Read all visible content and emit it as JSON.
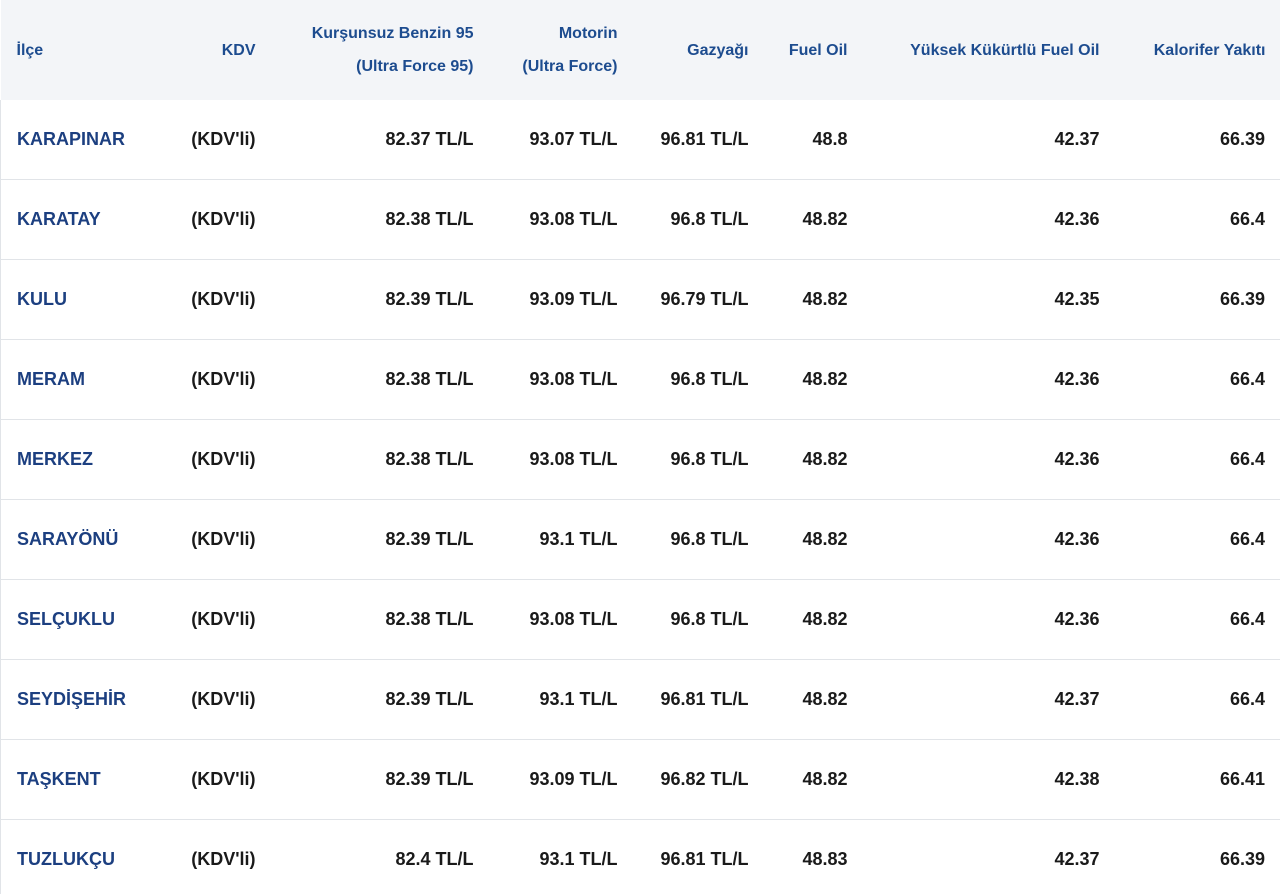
{
  "table": {
    "headers": [
      [
        "İlçe"
      ],
      [
        "KDV"
      ],
      [
        "Kurşunsuz Benzin 95",
        "(Ultra Force 95)"
      ],
      [
        "Motorin",
        "(Ultra Force)"
      ],
      [
        "Gazyağı"
      ],
      [
        "Fuel Oil"
      ],
      [
        "Yüksek Kükürtlü Fuel Oil"
      ],
      [
        "Kalorifer Yakıtı"
      ]
    ],
    "rows": [
      [
        "KARAPINAR",
        "(KDV'li)",
        "82.37 TL/L",
        "93.07 TL/L",
        "96.81 TL/L",
        "48.8",
        "42.37",
        "66.39"
      ],
      [
        "KARATAY",
        "(KDV'li)",
        "82.38 TL/L",
        "93.08 TL/L",
        "96.8 TL/L",
        "48.82",
        "42.36",
        "66.4"
      ],
      [
        "KULU",
        "(KDV'li)",
        "82.39 TL/L",
        "93.09 TL/L",
        "96.79 TL/L",
        "48.82",
        "42.35",
        "66.39"
      ],
      [
        "MERAM",
        "(KDV'li)",
        "82.38 TL/L",
        "93.08 TL/L",
        "96.8 TL/L",
        "48.82",
        "42.36",
        "66.4"
      ],
      [
        "MERKEZ",
        "(KDV'li)",
        "82.38 TL/L",
        "93.08 TL/L",
        "96.8 TL/L",
        "48.82",
        "42.36",
        "66.4"
      ],
      [
        "SARAYÖNÜ",
        "(KDV'li)",
        "82.39 TL/L",
        "93.1 TL/L",
        "96.8 TL/L",
        "48.82",
        "42.36",
        "66.4"
      ],
      [
        "SELÇUKLU",
        "(KDV'li)",
        "82.38 TL/L",
        "93.08 TL/L",
        "96.8 TL/L",
        "48.82",
        "42.36",
        "66.4"
      ],
      [
        "SEYDİŞEHİR",
        "(KDV'li)",
        "82.39 TL/L",
        "93.1 TL/L",
        "96.81 TL/L",
        "48.82",
        "42.37",
        "66.4"
      ],
      [
        "TAŞKENT",
        "(KDV'li)",
        "82.39 TL/L",
        "93.09 TL/L",
        "96.82 TL/L",
        "48.82",
        "42.38",
        "66.41"
      ],
      [
        "TUZLUKÇU",
        "(KDV'li)",
        "82.4 TL/L",
        "93.1 TL/L",
        "96.81 TL/L",
        "48.83",
        "42.37",
        "66.39"
      ]
    ]
  }
}
